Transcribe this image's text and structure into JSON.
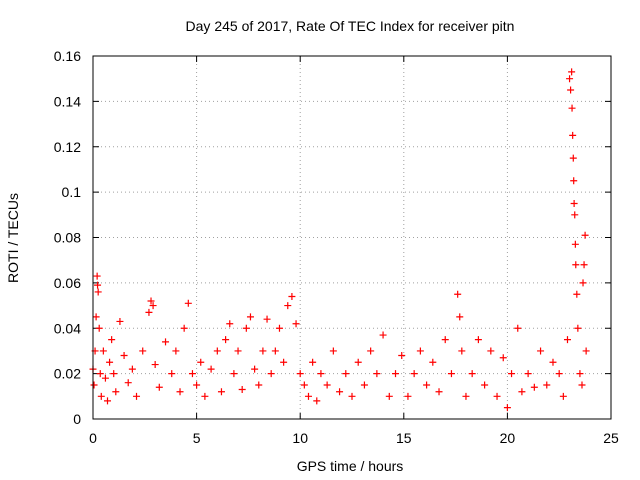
{
  "chart_data": {
    "type": "scatter",
    "title": "Day 245 of 2017, Rate Of TEC Index for receiver pitn",
    "xlabel": "GPS time / hours",
    "ylabel": "ROTI / TECUs",
    "xlim": [
      0,
      25
    ],
    "ylim": [
      0,
      0.16
    ],
    "x_ticks": [
      0,
      5,
      10,
      15,
      20,
      25
    ],
    "x_tick_labels": [
      "0",
      "5",
      "10",
      "15",
      "20",
      "25"
    ],
    "y_ticks": [
      0,
      0.02,
      0.04,
      0.06,
      0.08,
      0.1,
      0.12,
      0.14,
      0.16
    ],
    "y_tick_labels": [
      "0",
      "0.02",
      "0.04",
      "0.06",
      "0.08",
      "0.1",
      "0.12",
      "0.14",
      "0.16"
    ],
    "grid": true,
    "marker": "+",
    "color": "#ff0000",
    "series": [
      {
        "points": [
          [
            0.0,
            0.022
          ],
          [
            0.05,
            0.015
          ],
          [
            0.1,
            0.03
          ],
          [
            0.15,
            0.045
          ],
          [
            0.2,
            0.063
          ],
          [
            0.22,
            0.059
          ],
          [
            0.25,
            0.056
          ],
          [
            0.3,
            0.04
          ],
          [
            0.35,
            0.02
          ],
          [
            0.4,
            0.01
          ],
          [
            0.5,
            0.03
          ],
          [
            0.6,
            0.018
          ],
          [
            0.7,
            0.008
          ],
          [
            0.8,
            0.025
          ],
          [
            0.9,
            0.035
          ],
          [
            1.0,
            0.02
          ],
          [
            1.1,
            0.012
          ],
          [
            1.3,
            0.043
          ],
          [
            1.5,
            0.028
          ],
          [
            1.7,
            0.016
          ],
          [
            1.9,
            0.022
          ],
          [
            2.1,
            0.01
          ],
          [
            2.4,
            0.03
          ],
          [
            2.7,
            0.047
          ],
          [
            2.8,
            0.052
          ],
          [
            2.9,
            0.05
          ],
          [
            3.0,
            0.024
          ],
          [
            3.2,
            0.014
          ],
          [
            3.5,
            0.034
          ],
          [
            3.8,
            0.02
          ],
          [
            4.0,
            0.03
          ],
          [
            4.2,
            0.012
          ],
          [
            4.4,
            0.04
          ],
          [
            4.6,
            0.051
          ],
          [
            4.8,
            0.02
          ],
          [
            5.0,
            0.015
          ],
          [
            5.2,
            0.025
          ],
          [
            5.4,
            0.01
          ],
          [
            5.7,
            0.022
          ],
          [
            6.0,
            0.03
          ],
          [
            6.2,
            0.012
          ],
          [
            6.4,
            0.035
          ],
          [
            6.6,
            0.042
          ],
          [
            6.8,
            0.02
          ],
          [
            7.0,
            0.03
          ],
          [
            7.2,
            0.013
          ],
          [
            7.4,
            0.04
          ],
          [
            7.6,
            0.045
          ],
          [
            7.8,
            0.022
          ],
          [
            8.0,
            0.015
          ],
          [
            8.2,
            0.03
          ],
          [
            8.4,
            0.044
          ],
          [
            8.6,
            0.02
          ],
          [
            8.8,
            0.03
          ],
          [
            9.0,
            0.04
          ],
          [
            9.2,
            0.025
          ],
          [
            9.4,
            0.05
          ],
          [
            9.6,
            0.054
          ],
          [
            9.8,
            0.042
          ],
          [
            10.0,
            0.02
          ],
          [
            10.2,
            0.015
          ],
          [
            10.4,
            0.01
          ],
          [
            10.6,
            0.025
          ],
          [
            10.8,
            0.008
          ],
          [
            11.0,
            0.02
          ],
          [
            11.3,
            0.015
          ],
          [
            11.6,
            0.03
          ],
          [
            11.9,
            0.012
          ],
          [
            12.2,
            0.02
          ],
          [
            12.5,
            0.01
          ],
          [
            12.8,
            0.025
          ],
          [
            13.1,
            0.015
          ],
          [
            13.4,
            0.03
          ],
          [
            13.7,
            0.02
          ],
          [
            14.0,
            0.037
          ],
          [
            14.3,
            0.01
          ],
          [
            14.6,
            0.02
          ],
          [
            14.9,
            0.028
          ],
          [
            15.2,
            0.01
          ],
          [
            15.5,
            0.02
          ],
          [
            15.8,
            0.03
          ],
          [
            16.1,
            0.015
          ],
          [
            16.4,
            0.025
          ],
          [
            16.7,
            0.012
          ],
          [
            17.0,
            0.035
          ],
          [
            17.3,
            0.02
          ],
          [
            17.6,
            0.055
          ],
          [
            17.7,
            0.045
          ],
          [
            17.8,
            0.03
          ],
          [
            18.0,
            0.01
          ],
          [
            18.3,
            0.02
          ],
          [
            18.6,
            0.035
          ],
          [
            18.9,
            0.015
          ],
          [
            19.2,
            0.03
          ],
          [
            19.5,
            0.01
          ],
          [
            19.8,
            0.027
          ],
          [
            20.0,
            0.005
          ],
          [
            20.2,
            0.02
          ],
          [
            20.5,
            0.04
          ],
          [
            20.7,
            0.012
          ],
          [
            21.0,
            0.02
          ],
          [
            21.3,
            0.014
          ],
          [
            21.6,
            0.03
          ],
          [
            21.9,
            0.015
          ],
          [
            22.2,
            0.025
          ],
          [
            22.5,
            0.02
          ],
          [
            22.7,
            0.01
          ],
          [
            22.9,
            0.035
          ],
          [
            23.0,
            0.15
          ],
          [
            23.05,
            0.145
          ],
          [
            23.1,
            0.153
          ],
          [
            23.12,
            0.137
          ],
          [
            23.15,
            0.125
          ],
          [
            23.18,
            0.115
          ],
          [
            23.2,
            0.105
          ],
          [
            23.22,
            0.095
          ],
          [
            23.25,
            0.09
          ],
          [
            23.28,
            0.077
          ],
          [
            23.3,
            0.068
          ],
          [
            23.35,
            0.055
          ],
          [
            23.4,
            0.04
          ],
          [
            23.5,
            0.02
          ],
          [
            23.6,
            0.015
          ],
          [
            23.65,
            0.06
          ],
          [
            23.7,
            0.068
          ],
          [
            23.75,
            0.081
          ],
          [
            23.8,
            0.03
          ]
        ]
      }
    ]
  }
}
